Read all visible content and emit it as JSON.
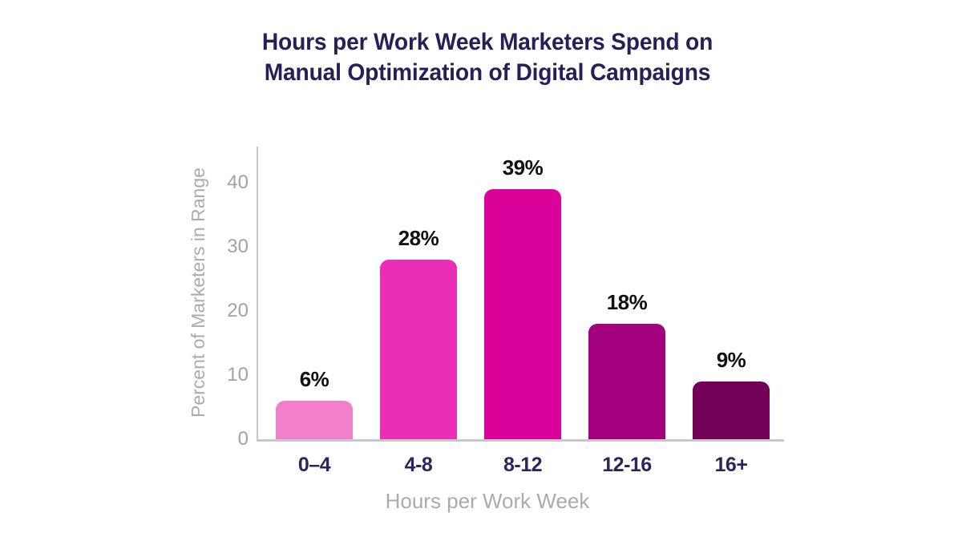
{
  "chart_data": {
    "type": "bar",
    "title": "Hours per Work Week Marketers Spend on Manual Optimization of Digital Campaigns",
    "title_lines": [
      "Hours per Work Week Marketers Spend on",
      "Manual Optimization of Digital Campaigns"
    ],
    "xlabel": "Hours per Work Week",
    "ylabel": "Percent of Marketers in Range",
    "categories": [
      "0–4",
      "4-8",
      "8-12",
      "12-16",
      "16+"
    ],
    "values": [
      6,
      28,
      39,
      18,
      9
    ],
    "value_labels": [
      "6%",
      "28%",
      "39%",
      "18%",
      "9%"
    ],
    "bar_colors": [
      "#F27FCB",
      "#EA2EB5",
      "#D9029A",
      "#A3017E",
      "#730158"
    ],
    "yticks": [
      0,
      10,
      20,
      30,
      40
    ],
    "ylim": [
      0,
      45.4
    ],
    "grid": false,
    "legend": "none"
  },
  "colors": {
    "title_text": "#262059",
    "value_label_text": "#111111",
    "category_label_text": "#2B2460",
    "axis_line": "#C8C8CA",
    "ytick_text": "#A3A3A3",
    "axis_title_text": "#ABABAB",
    "background": "#FFFFFF"
  }
}
